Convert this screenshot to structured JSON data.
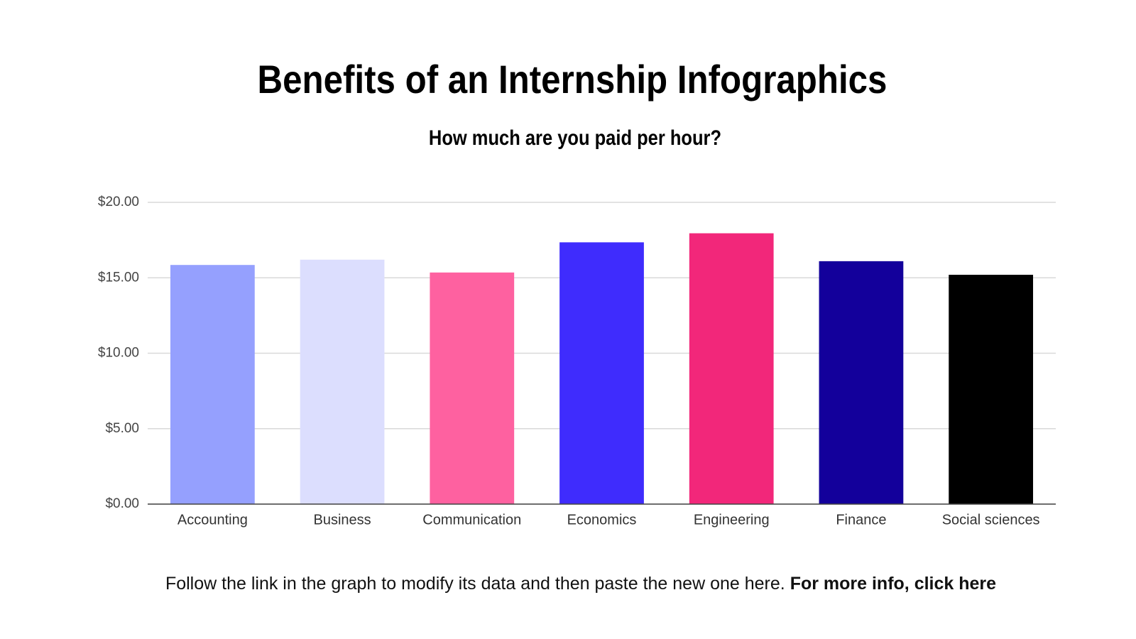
{
  "chart_data": {
    "type": "bar",
    "title": "Benefits of an Internship Infographics",
    "subtitle": "How much are you paid per hour?",
    "categories": [
      "Accounting",
      "Business",
      "Communication",
      "Economics",
      "Engineering",
      "Finance",
      "Social sciences"
    ],
    "values": [
      15.85,
      16.2,
      15.35,
      17.35,
      17.95,
      16.1,
      15.2
    ],
    "colors": [
      "#95a0fe",
      "#dcdefe",
      "#fe61a0",
      "#3f2cfd",
      "#f2277a",
      "#13009b",
      "#000000"
    ],
    "ylim": [
      0,
      20
    ],
    "yticks": [
      {
        "value": 0,
        "label": "$0.00"
      },
      {
        "value": 5,
        "label": "$5.00"
      },
      {
        "value": 10,
        "label": "$10.00"
      },
      {
        "value": 15,
        "label": "$15.00"
      },
      {
        "value": 20,
        "label": "$20.00"
      }
    ],
    "grid": true,
    "note": "Follow the link in the graph to modify its data and then paste the new one here.",
    "note_link": "For more info, click here"
  }
}
